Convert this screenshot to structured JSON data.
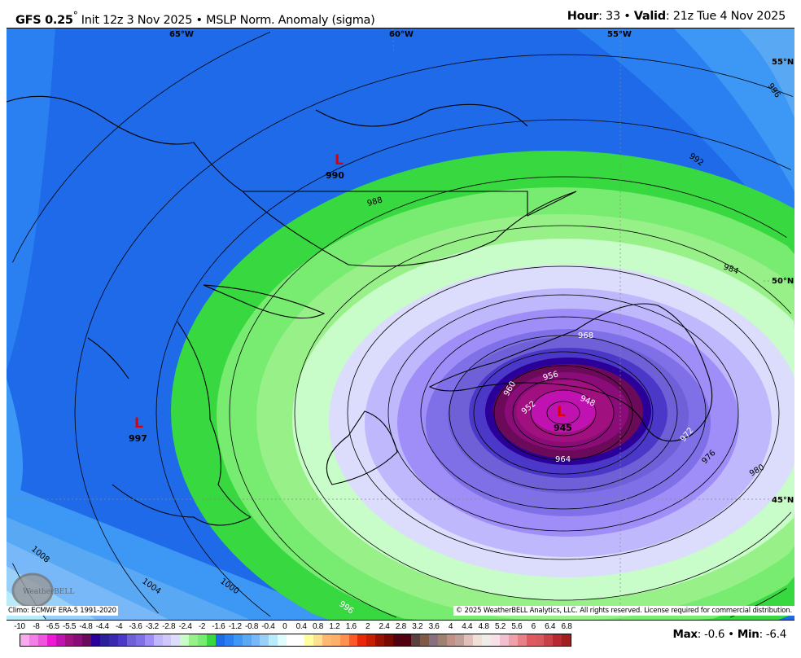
{
  "header": {
    "model": "GFS 0.25",
    "degree": "°",
    "init": " Init 12z 3 Nov 2025 • MSLP Norm. Anomaly (sigma)",
    "hour_label": "Hour",
    "hour_value": ": 33 • ",
    "valid_label": "Valid",
    "valid_value": ": 21z Tue 4 Nov 2025"
  },
  "map": {
    "longitude_labels": [
      "65°W",
      "60°W",
      "55°W"
    ],
    "latitude_labels": [
      "55°N",
      "50°N",
      "45°N"
    ],
    "pressure_centers": [
      {
        "symbol": "L",
        "value": "990",
        "color": "#e00000"
      },
      {
        "symbol": "L",
        "value": "997",
        "color": "#e00000"
      },
      {
        "symbol": "L",
        "value": "945",
        "color": "#e00000"
      }
    ],
    "isobar_labels": [
      "996",
      "992",
      "988",
      "984",
      "980",
      "976",
      "972",
      "968",
      "964",
      "960",
      "956",
      "952",
      "948",
      "1000",
      "1004",
      "1008",
      "996"
    ],
    "logo_text": "WeatherBELL"
  },
  "footer": {
    "climo": "Climo: ECMWF ERA-5 1991-2020",
    "copyright": "© 2025 WeatherBELL Analytics, LLC. All rights reserved. License required for commercial distribution.",
    "max_label": "Max",
    "max_value": ": -0.6 • ",
    "min_label": "Min",
    "min_value": ": -6.4"
  },
  "colorbar": {
    "ticks": [
      "-10",
      "-8",
      "-6.5",
      "-5.5",
      "-4.8",
      "-4.4",
      "-4",
      "-3.6",
      "-3.2",
      "-2.8",
      "-2.4",
      "-2",
      "-1.6",
      "-1.2",
      "-0.8",
      "-0.4",
      "0",
      "0.4",
      "0.8",
      "1.2",
      "1.6",
      "2",
      "2.4",
      "2.8",
      "3.2",
      "3.6",
      "4",
      "4.4",
      "4.8",
      "5.2",
      "5.6",
      "6",
      "6.4",
      "6.8"
    ],
    "colors": [
      "#f8a8ec",
      "#f27fe6",
      "#ee55dc",
      "#ec18d4",
      "#c012b0",
      "#a0107f",
      "#8a0c78",
      "#6a0a58",
      "#2a0098",
      "#2a2099",
      "#3a28b0",
      "#4b38c8",
      "#7060d8",
      "#8070e8",
      "#9f8ef8",
      "#c0b8fc",
      "#d0c8fc",
      "#dcdcfc",
      "#c8fcc8",
      "#98f088",
      "#78ec70",
      "#38d840",
      "#1e6ae8",
      "#2a80f0",
      "#3c98f4",
      "#58a8f4",
      "#78b8f8",
      "#98d0f8",
      "#b8ecfc",
      "#e0fcfc",
      "#ffffff",
      "#ffffff",
      "#ffffa0",
      "#ffe090",
      "#ffb870",
      "#ffb068",
      "#ff9050",
      "#ff5828",
      "#e82808",
      "#c81e00",
      "#981000",
      "#780800",
      "#500010",
      "#500010",
      "#5a4040",
      "#805848",
      "#887080",
      "#a08070",
      "#c09088",
      "#c0a098",
      "#e0c0b8",
      "#f0e0d8",
      "#f0ece8",
      "#f8e0e8",
      "#f0c0d0",
      "#f0a0a8",
      "#e88088",
      "#e05860",
      "#d85860",
      "#c84048",
      "#b82830",
      "#a02020"
    ]
  }
}
